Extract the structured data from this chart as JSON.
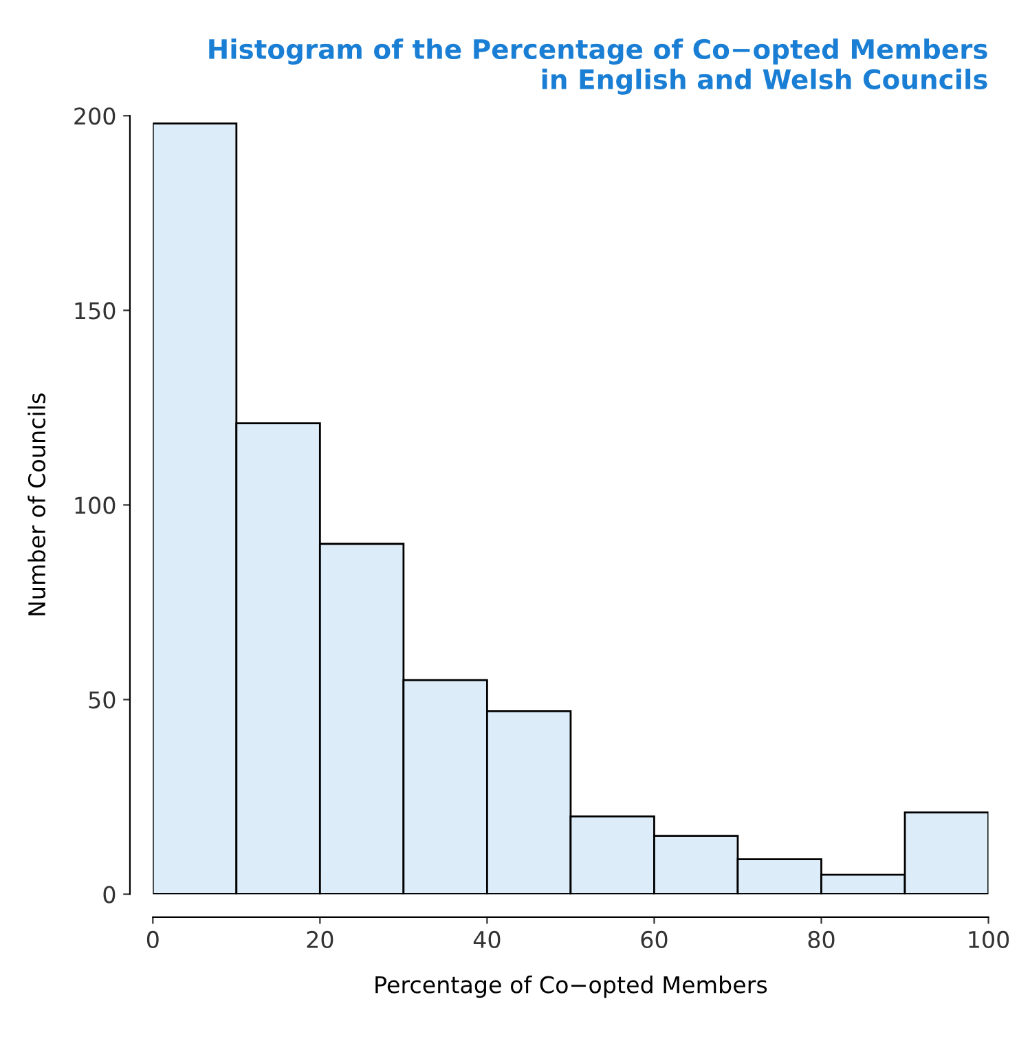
{
  "chart_data": {
    "type": "histogram",
    "title": "Histogram of the Percentage of Co−opted Members\nin English and Welsh Councils",
    "xlabel": "Percentage of Co−opted Members",
    "ylabel": "Number of Councils",
    "bins": [
      0,
      10,
      20,
      30,
      40,
      50,
      60,
      70,
      80,
      90,
      100
    ],
    "values": [
      198,
      121,
      90,
      55,
      47,
      20,
      15,
      9,
      5,
      21
    ],
    "color": "#dcecf8",
    "xlim": [
      0,
      100
    ],
    "xticks": [
      0,
      20,
      40,
      60,
      80,
      100
    ],
    "ylim": [
      0,
      200
    ],
    "yticks": [
      0,
      50,
      100,
      150,
      200
    ]
  }
}
